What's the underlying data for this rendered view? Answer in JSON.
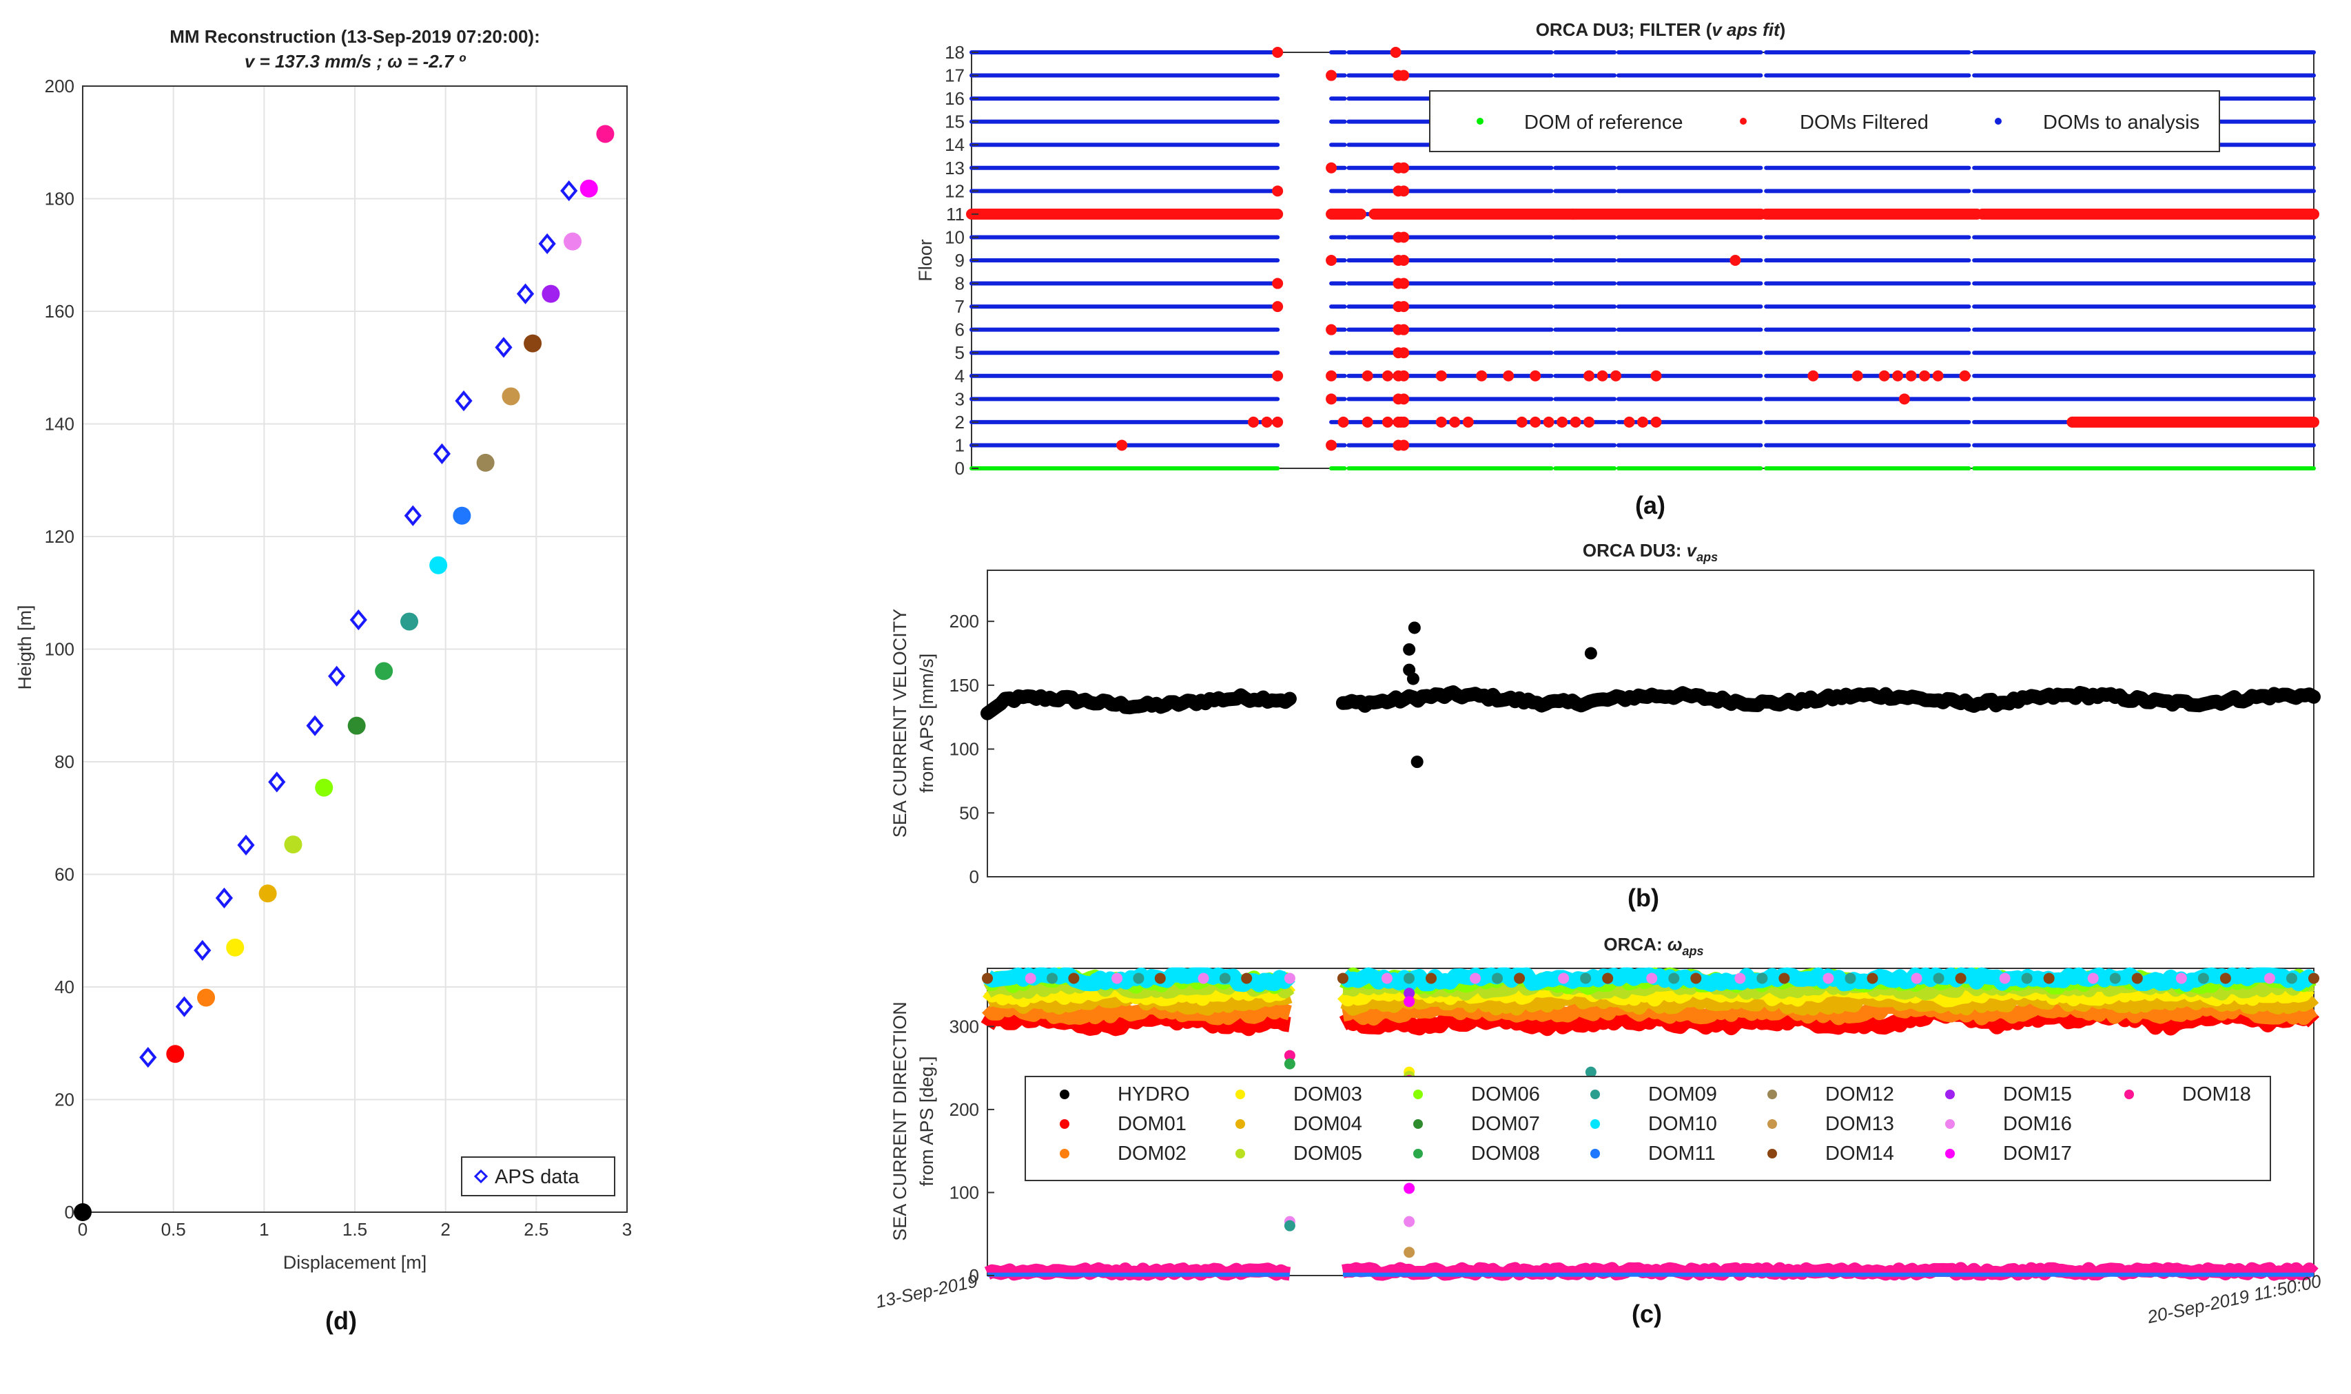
{
  "panels": {
    "a": {
      "label": "(a)"
    },
    "b": {
      "label": "(b)"
    },
    "c": {
      "label": "(c)"
    },
    "d": {
      "label": "(d)"
    }
  },
  "chart_data": [
    {
      "id": "d",
      "type": "scatter",
      "title": "MM Reconstruction (13-Sep-2019 07:20:00):",
      "subtitle": "v = 137.3 mm/s ; ω = -2.7 º",
      "xlabel": "Displacement [m]",
      "ylabel": "Heigth [m]",
      "xlim": [
        0,
        3
      ],
      "ylim": [
        0,
        200
      ],
      "xticks": [
        "0",
        "0.5",
        "1",
        "1.5",
        "2",
        "2.5",
        "3"
      ],
      "yticks": [
        "0",
        "20",
        "40",
        "60",
        "80",
        "100",
        "120",
        "140",
        "160",
        "180",
        "200"
      ],
      "grid": true,
      "legend": {
        "position": "bottom-right",
        "entries": [
          "APS data"
        ]
      },
      "series": [
        {
          "name": "APS data",
          "marker": "open-diamond",
          "color": "#1a1aff",
          "points": [
            [
              0.36,
              27.5
            ],
            [
              0.56,
              36.5
            ],
            [
              0.66,
              46.5
            ],
            [
              0.78,
              55.8
            ],
            [
              0.9,
              65.2
            ],
            [
              1.07,
              76.4
            ],
            [
              1.28,
              86.4
            ],
            [
              1.4,
              95.2
            ],
            [
              1.52,
              105.2
            ],
            [
              1.82,
              123.7
            ],
            [
              1.98,
              134.7
            ],
            [
              2.1,
              144.1
            ],
            [
              2.32,
              153.6
            ],
            [
              2.44,
              163.1
            ],
            [
              2.56,
              172.0
            ],
            [
              2.68,
              181.4
            ]
          ]
        },
        {
          "name": "MM reconstruction",
          "marker": "filled-circle",
          "points": [
            [
              0.0,
              0.0
            ],
            [
              0.51,
              28.1
            ],
            [
              0.68,
              38.1
            ],
            [
              0.84,
              47.0
            ],
            [
              1.02,
              56.6
            ],
            [
              1.16,
              65.3
            ],
            [
              1.33,
              75.4
            ],
            [
              1.51,
              86.4
            ],
            [
              1.66,
              96.1
            ],
            [
              1.8,
              104.9
            ],
            [
              1.96,
              114.9
            ],
            [
              2.09,
              123.7
            ],
            [
              2.22,
              133.1
            ],
            [
              2.36,
              144.9
            ],
            [
              2.48,
              154.3
            ],
            [
              2.58,
              163.1
            ],
            [
              2.7,
              172.4
            ],
            [
              2.79,
              181.8
            ],
            [
              2.88,
              191.5
            ]
          ],
          "colors": [
            "#000000",
            "#ff0000",
            "#ff7f0e",
            "#ffee00",
            "#e8b000",
            "#b8e020",
            "#88ff00",
            "#2e8b2e",
            "#2aa84a",
            "#2a9d8f",
            "#00e5ff",
            "#1f77ff",
            "#9b8755",
            "#c8964b",
            "#8b4513",
            "#a020f0",
            "#ee82ee",
            "#ff00ff",
            "#ff1493"
          ]
        }
      ]
    },
    {
      "id": "a",
      "type": "scatter",
      "title": "ORCA DU3; FILTER (v aps fit)",
      "title_plain": "ORCA DU3; FILTER (",
      "title_italic": "v aps fit",
      "title_close": ")",
      "ylabel": "Floor",
      "ylim": [
        0,
        18
      ],
      "yticks": [
        "0",
        "1",
        "2",
        "3",
        "4",
        "5",
        "6",
        "7",
        "8",
        "9",
        "10",
        "11",
        "12",
        "13",
        "14",
        "15",
        "16",
        "17",
        "18"
      ],
      "legend": {
        "position": "top-right",
        "entries": [
          "DOM of reference",
          "DOMs Filtered",
          "DOMs to analysis"
        ]
      },
      "colors": {
        "reference": "#00ee00",
        "filtered": "#ff1111",
        "analysis": "#1122dd"
      },
      "time_fraction_gaps": [
        [
          0.228,
          0.268
        ],
        [
          0.278,
          0.281
        ],
        [
          0.432,
          0.435
        ],
        [
          0.479,
          0.482
        ],
        [
          0.588,
          0.592
        ],
        [
          0.743,
          0.747
        ]
      ],
      "filtered_runs": [
        {
          "floor": 11,
          "from": 0.0,
          "to": 0.228
        },
        {
          "floor": 11,
          "from": 0.268,
          "to": 0.29
        },
        {
          "floor": 11,
          "from": 0.3,
          "to": 0.448
        },
        {
          "floor": 11,
          "from": 0.448,
          "to": 0.588
        },
        {
          "floor": 11,
          "from": 0.592,
          "to": 0.749
        },
        {
          "floor": 11,
          "from": 0.753,
          "to": 1.0
        },
        {
          "floor": 2,
          "from": 0.82,
          "to": 1.0
        }
      ],
      "filtered_points": [
        [
          0.112,
          1
        ],
        [
          0.228,
          18
        ],
        [
          0.228,
          12
        ],
        [
          0.228,
          8
        ],
        [
          0.228,
          7
        ],
        [
          0.228,
          4
        ],
        [
          0.21,
          2
        ],
        [
          0.22,
          2
        ],
        [
          0.228,
          2
        ],
        [
          0.268,
          17
        ],
        [
          0.268,
          13
        ],
        [
          0.268,
          9
        ],
        [
          0.268,
          6
        ],
        [
          0.268,
          4
        ],
        [
          0.268,
          3
        ],
        [
          0.268,
          1
        ],
        [
          0.277,
          2
        ],
        [
          0.295,
          4
        ],
        [
          0.31,
          4
        ],
        [
          0.295,
          2
        ],
        [
          0.31,
          2
        ],
        [
          0.32,
          2
        ],
        [
          0.316,
          18
        ],
        [
          0.318,
          17
        ],
        [
          0.322,
          17
        ],
        [
          0.318,
          13
        ],
        [
          0.322,
          13
        ],
        [
          0.318,
          12
        ],
        [
          0.322,
          12
        ],
        [
          0.318,
          10
        ],
        [
          0.322,
          10
        ],
        [
          0.318,
          9
        ],
        [
          0.322,
          9
        ],
        [
          0.318,
          8
        ],
        [
          0.322,
          8
        ],
        [
          0.318,
          7
        ],
        [
          0.322,
          7
        ],
        [
          0.318,
          6
        ],
        [
          0.322,
          6
        ],
        [
          0.318,
          5
        ],
        [
          0.322,
          5
        ],
        [
          0.318,
          4
        ],
        [
          0.322,
          4
        ],
        [
          0.318,
          3
        ],
        [
          0.322,
          3
        ],
        [
          0.318,
          2
        ],
        [
          0.322,
          2
        ],
        [
          0.318,
          1
        ],
        [
          0.322,
          1
        ],
        [
          0.35,
          2
        ],
        [
          0.36,
          2
        ],
        [
          0.37,
          2
        ],
        [
          0.35,
          4
        ],
        [
          0.38,
          4
        ],
        [
          0.4,
          4
        ],
        [
          0.42,
          4
        ],
        [
          0.41,
          2
        ],
        [
          0.42,
          2
        ],
        [
          0.43,
          2
        ],
        [
          0.44,
          2
        ],
        [
          0.45,
          2
        ],
        [
          0.46,
          2
        ],
        [
          0.46,
          4
        ],
        [
          0.47,
          4
        ],
        [
          0.48,
          4
        ],
        [
          0.49,
          2
        ],
        [
          0.5,
          2
        ],
        [
          0.51,
          4
        ],
        [
          0.51,
          2
        ],
        [
          0.569,
          9
        ],
        [
          0.627,
          4
        ],
        [
          0.66,
          4
        ],
        [
          0.68,
          4
        ],
        [
          0.69,
          4
        ],
        [
          0.7,
          4
        ],
        [
          0.71,
          4
        ],
        [
          0.72,
          4
        ],
        [
          0.74,
          4
        ],
        [
          0.695,
          3
        ]
      ]
    },
    {
      "id": "b",
      "type": "scatter",
      "title": "ORCA DU3: v_aps",
      "title_plain": "ORCA DU3: ",
      "title_italic": "v",
      "title_sub": "aps",
      "ylabel": "SEA CURRENT VELOCITY",
      "ylabel2": "from APS [mm/s]",
      "ylim": [
        0,
        240
      ],
      "yticks": [
        "0",
        "50",
        "100",
        "150",
        "200"
      ],
      "color": "#000000",
      "segments": [
        {
          "from": 0.0,
          "to": 0.228,
          "mean": 137,
          "start": 128
        },
        {
          "from": 0.268,
          "to": 1.0,
          "mean": 139
        }
      ],
      "outliers": [
        [
          0.318,
          178
        ],
        [
          0.322,
          195
        ],
        [
          0.318,
          162
        ],
        [
          0.321,
          155
        ],
        [
          0.324,
          90
        ],
        [
          0.455,
          175
        ]
      ]
    },
    {
      "id": "c",
      "type": "scatter",
      "title": "ORCA: ω_aps",
      "title_plain": "ORCA: ",
      "title_italic": "ω",
      "title_sub": "aps",
      "ylabel": "SEA CURRENT DIRECTION",
      "ylabel2": "from APS [deg.]",
      "ylim": [
        0,
        370
      ],
      "yticks": [
        "0",
        "100",
        "200",
        "300"
      ],
      "xticks": [
        "13-Sep-2019",
        "20-Sep-2019 11:50:00"
      ],
      "legend": {
        "position": "center",
        "entries": [
          "HYDRO",
          "DOM01",
          "DOM02",
          "DOM03",
          "DOM04",
          "DOM05",
          "DOM06",
          "DOM07",
          "DOM08",
          "DOM09",
          "DOM10",
          "DOM11",
          "DOM12",
          "DOM13",
          "DOM14",
          "DOM15",
          "DOM16",
          "DOM17",
          "DOM18"
        ],
        "colors": [
          "#000000",
          "#ff0000",
          "#ff7f0e",
          "#ffee00",
          "#e8b000",
          "#b8e020",
          "#88ff00",
          "#2e8b2e",
          "#2aa84a",
          "#2a9d8f",
          "#00e5ff",
          "#1f77ff",
          "#9b8755",
          "#c8964b",
          "#8b4513",
          "#a020f0",
          "#ee82ee",
          "#ff00ff",
          "#ff1493"
        ]
      },
      "band_levels": [
        305,
        318,
        330,
        340,
        348,
        355,
        358
      ],
      "low_level": 5,
      "outliers": [
        [
          0.228,
          265,
          "#ff1493"
        ],
        [
          0.228,
          255,
          "#2aa84a"
        ],
        [
          0.228,
          65,
          "#ee82ee"
        ],
        [
          0.228,
          60,
          "#2a9d8f"
        ],
        [
          0.318,
          340,
          "#a020f0"
        ],
        [
          0.318,
          330,
          "#ff00ff"
        ],
        [
          0.318,
          245,
          "#ffee00"
        ],
        [
          0.318,
          240,
          "#b8e020"
        ],
        [
          0.318,
          235,
          "#ff1493"
        ],
        [
          0.318,
          105,
          "#ff00ff"
        ],
        [
          0.318,
          65,
          "#ee82ee"
        ],
        [
          0.318,
          28,
          "#c8964b"
        ],
        [
          0.455,
          245,
          "#2a9d8f"
        ]
      ]
    }
  ]
}
